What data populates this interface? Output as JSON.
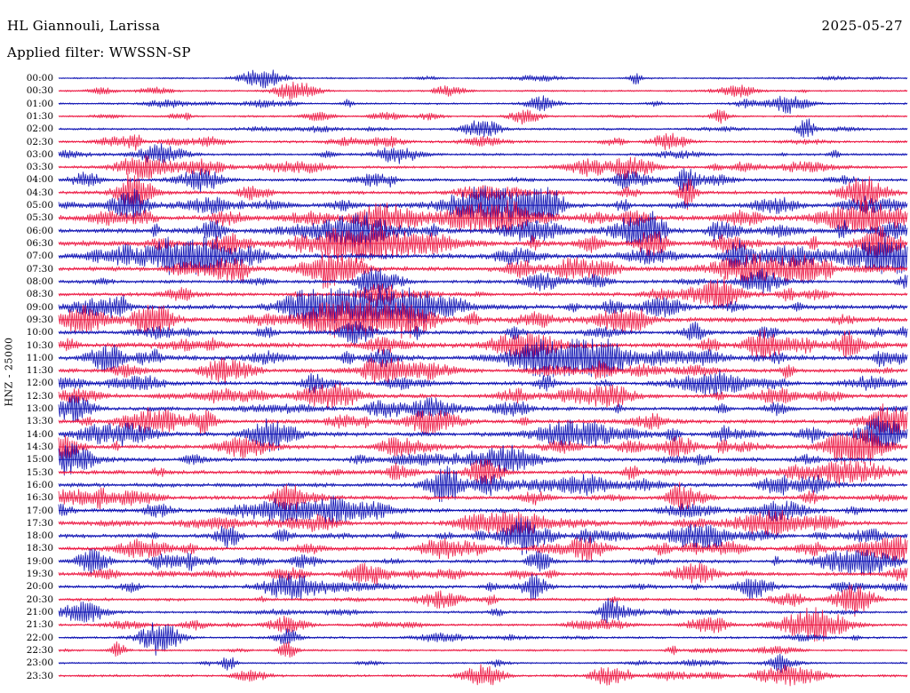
{
  "header": {
    "station": "HL Giannouli, Larissa",
    "date": "2025-05-27",
    "filter_label": "Applied filter: WWSSN-SP"
  },
  "axis": {
    "left_label": "HNZ - 25000"
  },
  "chart_data": {
    "type": "line",
    "chart_kind": "helicorder-seismogram",
    "station": "HL Giannouli, Larissa",
    "channel_scale_label": "HNZ - 25000",
    "date": "2025-05-27",
    "filter": "WWSSN-SP",
    "row_interval_minutes": 30,
    "x_axis": "0-30 minutes within each row, no tick labels shown",
    "trace_color_cycle": [
      "blue",
      "red"
    ],
    "colors": {
      "blue": "#1014b4",
      "red": "#ed1c46"
    },
    "rows": [
      {
        "time": "00:00",
        "color": "blue",
        "activity": 0.15,
        "events": [
          {
            "pos": 0.24,
            "amp": 0.5
          },
          {
            "pos": 0.68,
            "amp": 0.2
          }
        ]
      },
      {
        "time": "00:30",
        "color": "red",
        "activity": 0.15,
        "events": [
          {
            "pos": 0.28,
            "amp": 0.45
          },
          {
            "pos": 0.46,
            "amp": 0.2
          }
        ]
      },
      {
        "time": "01:00",
        "color": "blue",
        "activity": 0.18,
        "events": [
          {
            "pos": 0.57,
            "amp": 0.35
          },
          {
            "pos": 0.86,
            "amp": 0.4
          }
        ]
      },
      {
        "time": "01:30",
        "color": "red",
        "activity": 0.2,
        "events": [
          {
            "pos": 0.55,
            "amp": 0.35
          },
          {
            "pos": 0.78,
            "amp": 0.3
          }
        ]
      },
      {
        "time": "02:00",
        "color": "blue",
        "activity": 0.25,
        "events": [
          {
            "pos": 0.5,
            "amp": 0.3
          },
          {
            "pos": 0.88,
            "amp": 0.25
          }
        ]
      },
      {
        "time": "02:30",
        "color": "red",
        "activity": 0.3,
        "events": [
          {
            "pos": 0.72,
            "amp": 0.5
          },
          {
            "pos": 0.09,
            "amp": 0.35
          }
        ]
      },
      {
        "time": "03:00",
        "color": "blue",
        "activity": 0.3,
        "events": [
          {
            "pos": 0.12,
            "amp": 0.5
          },
          {
            "pos": 0.4,
            "amp": 0.3
          }
        ]
      },
      {
        "time": "03:30",
        "color": "red",
        "activity": 0.35,
        "events": [
          {
            "pos": 0.1,
            "amp": 0.6
          },
          {
            "pos": 0.17,
            "amp": 0.4
          },
          {
            "pos": 0.68,
            "amp": 0.35
          }
        ]
      },
      {
        "time": "04:00",
        "color": "blue",
        "activity": 0.4,
        "events": [
          {
            "pos": 0.17,
            "amp": 0.5
          },
          {
            "pos": 0.74,
            "amp": 0.6
          }
        ]
      },
      {
        "time": "04:30",
        "color": "red",
        "activity": 0.5,
        "events": [
          {
            "pos": 0.09,
            "amp": 1.0
          },
          {
            "pos": 0.74,
            "amp": 0.6
          },
          {
            "pos": 0.95,
            "amp": 0.8
          }
        ]
      },
      {
        "time": "05:00",
        "color": "blue",
        "activity": 0.6,
        "events": [
          {
            "pos": 0.5,
            "amp": 1.0
          },
          {
            "pos": 0.56,
            "amp": 0.7
          },
          {
            "pos": 0.09,
            "amp": 0.7
          }
        ]
      },
      {
        "time": "05:30",
        "color": "red",
        "activity": 0.8,
        "events": [
          {
            "pos": 0.38,
            "amp": 0.7
          },
          {
            "pos": 0.5,
            "amp": 0.8
          },
          {
            "pos": 0.95,
            "amp": 0.9
          }
        ]
      },
      {
        "time": "06:00",
        "color": "blue",
        "activity": 0.8,
        "events": [
          {
            "pos": 0.35,
            "amp": 0.8
          },
          {
            "pos": 0.56,
            "amp": 0.6
          },
          {
            "pos": 0.7,
            "amp": 0.7
          }
        ]
      },
      {
        "time": "06:30",
        "color": "red",
        "activity": 0.85,
        "events": [
          {
            "pos": 0.36,
            "amp": 1.0
          },
          {
            "pos": 0.7,
            "amp": 0.8
          },
          {
            "pos": 0.97,
            "amp": 0.9
          }
        ]
      },
      {
        "time": "07:00",
        "color": "blue",
        "activity": 0.8,
        "events": [
          {
            "pos": 0.17,
            "amp": 0.7
          },
          {
            "pos": 0.8,
            "amp": 0.8
          },
          {
            "pos": 0.97,
            "amp": 0.9
          }
        ]
      },
      {
        "time": "07:30",
        "color": "red",
        "activity": 0.7,
        "events": [
          {
            "pos": 0.2,
            "amp": 0.6
          },
          {
            "pos": 0.33,
            "amp": 0.7
          },
          {
            "pos": 0.82,
            "amp": 0.8
          }
        ]
      },
      {
        "time": "08:00",
        "color": "blue",
        "activity": 0.5,
        "events": [
          {
            "pos": 0.38,
            "amp": 0.5
          },
          {
            "pos": 0.57,
            "amp": 0.4
          }
        ]
      },
      {
        "time": "08:30",
        "color": "red",
        "activity": 0.5,
        "events": [
          {
            "pos": 0.38,
            "amp": 0.6
          },
          {
            "pos": 0.77,
            "amp": 0.5
          }
        ]
      },
      {
        "time": "09:00",
        "color": "blue",
        "activity": 0.75,
        "events": [
          {
            "pos": 0.3,
            "amp": 0.9
          },
          {
            "pos": 0.36,
            "amp": 0.8
          },
          {
            "pos": 0.42,
            "amp": 0.85
          }
        ]
      },
      {
        "time": "09:30",
        "color": "red",
        "activity": 0.8,
        "events": [
          {
            "pos": 0.33,
            "amp": 0.9
          },
          {
            "pos": 0.41,
            "amp": 0.9
          },
          {
            "pos": 0.1,
            "amp": 0.5
          }
        ]
      },
      {
        "time": "10:00",
        "color": "blue",
        "activity": 0.6,
        "events": [
          {
            "pos": 0.35,
            "amp": 0.6
          },
          {
            "pos": 0.75,
            "amp": 0.5
          }
        ]
      },
      {
        "time": "10:30",
        "color": "red",
        "activity": 0.75,
        "events": [
          {
            "pos": 0.55,
            "amp": 0.7
          },
          {
            "pos": 0.83,
            "amp": 0.8
          },
          {
            "pos": 0.93,
            "amp": 0.7
          }
        ]
      },
      {
        "time": "11:00",
        "color": "blue",
        "activity": 0.8,
        "events": [
          {
            "pos": 0.57,
            "amp": 1.0
          },
          {
            "pos": 0.63,
            "amp": 0.7
          }
        ]
      },
      {
        "time": "11:30",
        "color": "red",
        "activity": 0.6,
        "events": [
          {
            "pos": 0.2,
            "amp": 0.5
          },
          {
            "pos": 0.64,
            "amp": 0.5
          }
        ]
      },
      {
        "time": "12:00",
        "color": "blue",
        "activity": 0.6,
        "events": [
          {
            "pos": 0.3,
            "amp": 0.6
          },
          {
            "pos": 0.77,
            "amp": 0.6
          }
        ]
      },
      {
        "time": "12:30",
        "color": "red",
        "activity": 0.6,
        "events": [
          {
            "pos": 0.32,
            "amp": 0.7
          },
          {
            "pos": 0.65,
            "amp": 0.5
          }
        ]
      },
      {
        "time": "13:00",
        "color": "blue",
        "activity": 0.6,
        "events": [
          {
            "pos": 0.02,
            "amp": 0.5
          },
          {
            "pos": 0.44,
            "amp": 0.5
          }
        ]
      },
      {
        "time": "13:30",
        "color": "red",
        "activity": 0.6,
        "events": [
          {
            "pos": 0.17,
            "amp": 0.6
          },
          {
            "pos": 0.44,
            "amp": 0.6
          },
          {
            "pos": 0.98,
            "amp": 0.7
          }
        ]
      },
      {
        "time": "14:00",
        "color": "blue",
        "activity": 0.65,
        "events": [
          {
            "pos": 0.25,
            "amp": 0.9
          },
          {
            "pos": 0.6,
            "amp": 0.7
          },
          {
            "pos": 0.97,
            "amp": 0.8
          }
        ]
      },
      {
        "time": "14:30",
        "color": "red",
        "activity": 0.6,
        "events": [
          {
            "pos": 0.22,
            "amp": 0.5
          },
          {
            "pos": 0.73,
            "amp": 0.5
          },
          {
            "pos": 0.94,
            "amp": 0.6
          }
        ]
      },
      {
        "time": "15:00",
        "color": "blue",
        "activity": 0.6,
        "events": [
          {
            "pos": 0.02,
            "amp": 0.6
          },
          {
            "pos": 0.52,
            "amp": 0.5
          }
        ]
      },
      {
        "time": "15:30",
        "color": "red",
        "activity": 0.6,
        "events": [
          {
            "pos": 0.5,
            "amp": 0.7
          },
          {
            "pos": 0.94,
            "amp": 0.5
          }
        ]
      },
      {
        "time": "16:00",
        "color": "blue",
        "activity": 0.6,
        "events": [
          {
            "pos": 0.45,
            "amp": 0.5
          },
          {
            "pos": 0.62,
            "amp": 0.5
          }
        ]
      },
      {
        "time": "16:30",
        "color": "red",
        "activity": 0.6,
        "events": [
          {
            "pos": 0.27,
            "amp": 0.7
          },
          {
            "pos": 0.73,
            "amp": 0.6
          }
        ]
      },
      {
        "time": "17:00",
        "color": "blue",
        "activity": 0.6,
        "events": [
          {
            "pos": 0.26,
            "amp": 0.6
          },
          {
            "pos": 0.85,
            "amp": 0.5
          }
        ]
      },
      {
        "time": "17:30",
        "color": "red",
        "activity": 0.6,
        "events": [
          {
            "pos": 0.54,
            "amp": 0.5
          },
          {
            "pos": 0.84,
            "amp": 0.6
          }
        ]
      },
      {
        "time": "18:00",
        "color": "blue",
        "activity": 0.6,
        "events": [
          {
            "pos": 0.2,
            "amp": 0.6
          },
          {
            "pos": 0.55,
            "amp": 0.5
          },
          {
            "pos": 0.75,
            "amp": 0.6
          }
        ]
      },
      {
        "time": "18:30",
        "color": "red",
        "activity": 0.6,
        "events": [
          {
            "pos": 0.1,
            "amp": 0.5
          },
          {
            "pos": 0.62,
            "amp": 0.6
          },
          {
            "pos": 0.98,
            "amp": 0.7
          }
        ]
      },
      {
        "time": "19:00",
        "color": "blue",
        "activity": 0.5,
        "events": [
          {
            "pos": 0.04,
            "amp": 0.6
          },
          {
            "pos": 0.57,
            "amp": 0.5
          },
          {
            "pos": 0.95,
            "amp": 0.7
          }
        ]
      },
      {
        "time": "19:30",
        "color": "red",
        "activity": 0.5,
        "events": [
          {
            "pos": 0.37,
            "amp": 0.5
          },
          {
            "pos": 0.75,
            "amp": 0.5
          }
        ]
      },
      {
        "time": "20:00",
        "color": "blue",
        "activity": 0.45,
        "events": [
          {
            "pos": 0.27,
            "amp": 0.5
          },
          {
            "pos": 0.56,
            "amp": 0.5
          },
          {
            "pos": 0.82,
            "amp": 0.5
          }
        ]
      },
      {
        "time": "20:30",
        "color": "red",
        "activity": 0.4,
        "events": [
          {
            "pos": 0.45,
            "amp": 0.4
          },
          {
            "pos": 0.94,
            "amp": 0.5
          }
        ]
      },
      {
        "time": "21:00",
        "color": "blue",
        "activity": 0.3,
        "events": [
          {
            "pos": 0.03,
            "amp": 0.4
          },
          {
            "pos": 0.65,
            "amp": 0.6
          }
        ]
      },
      {
        "time": "21:30",
        "color": "red",
        "activity": 0.28,
        "events": [
          {
            "pos": 0.89,
            "amp": 1.0
          },
          {
            "pos": 0.27,
            "amp": 0.4
          }
        ]
      },
      {
        "time": "22:00",
        "color": "blue",
        "activity": 0.25,
        "events": [
          {
            "pos": 0.12,
            "amp": 0.8
          },
          {
            "pos": 0.27,
            "amp": 0.4
          }
        ]
      },
      {
        "time": "22:30",
        "color": "red",
        "activity": 0.2,
        "events": [
          {
            "pos": 0.07,
            "amp": 0.4
          },
          {
            "pos": 0.27,
            "amp": 0.4
          }
        ]
      },
      {
        "time": "23:00",
        "color": "blue",
        "activity": 0.15,
        "events": [
          {
            "pos": 0.2,
            "amp": 0.3
          },
          {
            "pos": 0.85,
            "amp": 0.3
          }
        ]
      },
      {
        "time": "23:30",
        "color": "red",
        "activity": 0.3,
        "events": [
          {
            "pos": 0.5,
            "amp": 0.5
          },
          {
            "pos": 0.65,
            "amp": 0.4
          },
          {
            "pos": 0.85,
            "amp": 0.4
          }
        ]
      }
    ]
  }
}
